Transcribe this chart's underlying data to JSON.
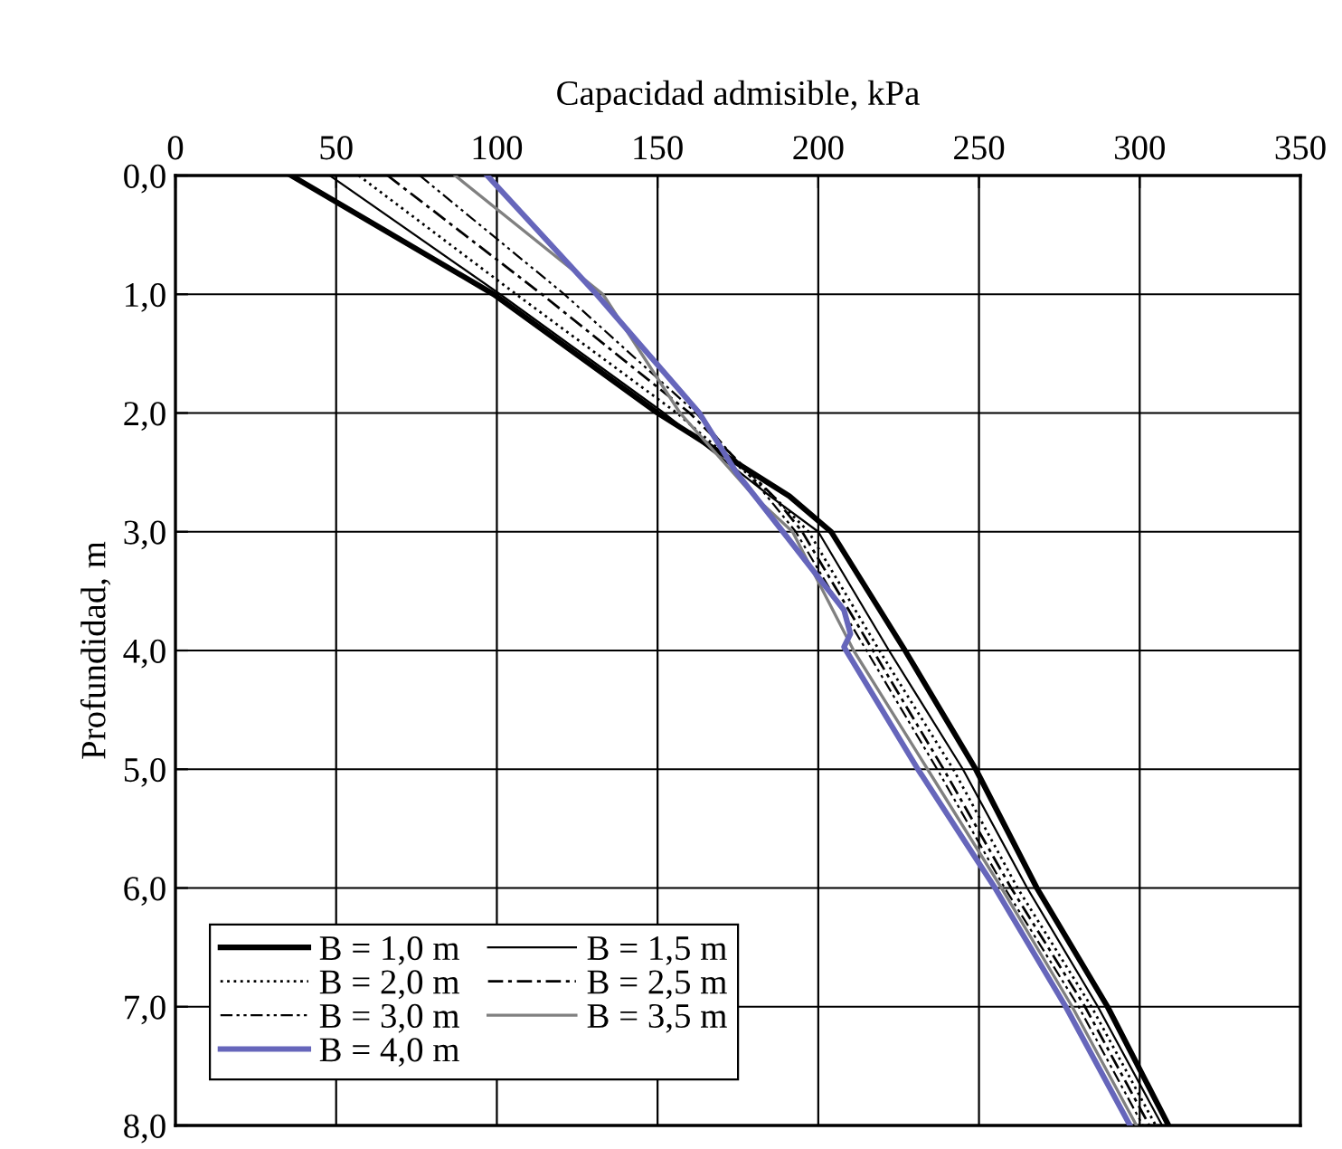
{
  "chart_data": {
    "type": "line",
    "orientation": "horizontal",
    "xlabel": "Capacidad admisible, kPa",
    "ylabel": "Profundidad, m",
    "x": [
      0,
      1,
      2,
      2.7,
      3,
      4,
      5,
      6,
      7,
      8
    ],
    "xlim": [
      0,
      350
    ],
    "xticks": [
      0,
      50,
      100,
      150,
      200,
      250,
      300,
      350
    ],
    "ylim": [
      8,
      0
    ],
    "yticks": [
      {
        "value": 0,
        "label": "0,0"
      },
      {
        "value": 1,
        "label": "1,0"
      },
      {
        "value": 2,
        "label": "2,0"
      },
      {
        "value": 3,
        "label": "3,0"
      },
      {
        "value": 4,
        "label": "4,0"
      },
      {
        "value": 5,
        "label": "5,0"
      },
      {
        "value": 6,
        "label": "6,0"
      },
      {
        "value": 7,
        "label": "7,0"
      },
      {
        "value": 8,
        "label": "8,0"
      }
    ],
    "grid": true,
    "legend": "bottom left",
    "marker": "none",
    "series": [
      {
        "name": "B = 1,0 m",
        "color": "#000000",
        "line_style": "solid",
        "values": [
          36,
          99,
          150,
          191,
          204,
          227,
          249,
          268,
          290,
          309
        ]
      },
      {
        "name": "B = 1,5 m",
        "color": "#000000",
        "line_style": "solid",
        "values": [
          48,
          101,
          152,
          185,
          200,
          222,
          245,
          265,
          287,
          307
        ]
      },
      {
        "name": "B = 2,0 m",
        "color": "#000000",
        "line_style": "dotted",
        "values": [
          57,
          106,
          156,
          186,
          197,
          219,
          242,
          262,
          285,
          305
        ]
      },
      {
        "name": "B = 2,5 m",
        "color": "#000000",
        "line_style": "dashdot",
        "values": [
          66,
          114,
          160,
          186,
          195,
          217,
          239,
          260,
          283,
          303
        ]
      },
      {
        "name": "B = 3,0 m",
        "color": "#000000",
        "line_style": "dashdotdot",
        "values": [
          76,
          121,
          162,
          184,
          193,
          215,
          237,
          258,
          281,
          301
        ]
      },
      {
        "name": "B = 3,5 m",
        "color": "#808080",
        "line_style": "solid",
        "values": [
          87,
          133,
          157,
          180,
          192,
          211,
          234,
          257,
          279,
          299
        ]
      },
      {
        "name": "B = 4,0 m",
        "color": "#6666bb",
        "line_style": "solid",
        "x": [
          0,
          0.5,
          1,
          2,
          2.5,
          3,
          3.66,
          3.86,
          3.97,
          5,
          6,
          7,
          8
        ],
        "values": [
          97,
          114,
          131,
          163,
          174.5,
          189,
          208,
          210,
          208,
          231,
          255,
          277,
          297
        ]
      }
    ]
  }
}
